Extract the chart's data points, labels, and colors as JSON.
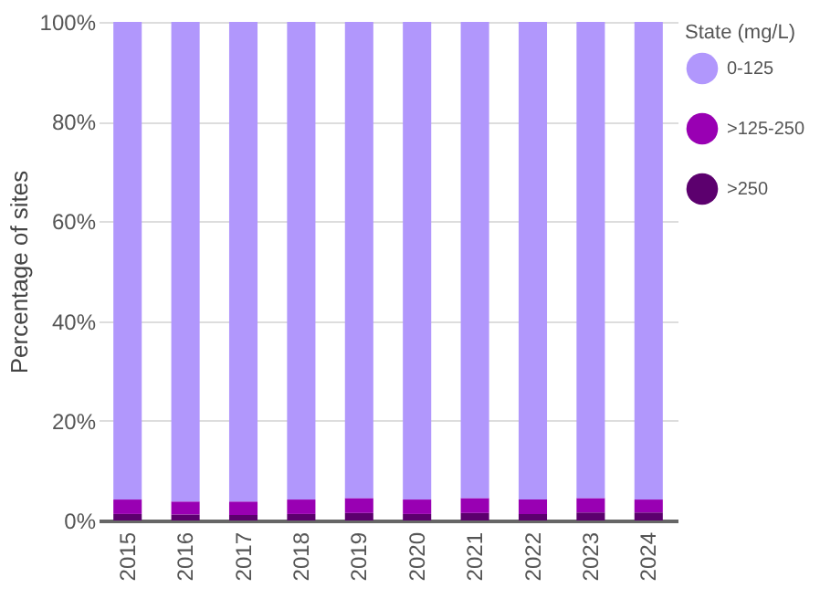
{
  "chart_data": {
    "type": "bar",
    "stacked": true,
    "ylabel": "Percentage of sites",
    "legend_title": "State (mg/L)",
    "legend": "right",
    "categories": [
      "2015",
      "2016",
      "2017",
      "2018",
      "2019",
      "2020",
      "2021",
      "2022",
      "2023",
      "2024"
    ],
    "series": [
      {
        "name": ">250",
        "color": "#5c006e",
        "values": [
          1.3,
          1.2,
          1.1,
          1.3,
          1.5,
          1.3,
          1.5,
          1.3,
          1.6,
          1.6
        ]
      },
      {
        "name": ">125-250",
        "color": "#9900b3",
        "values": [
          2.9,
          2.6,
          2.7,
          2.9,
          3.0,
          2.9,
          3.0,
          2.9,
          2.9,
          2.6
        ]
      },
      {
        "name": "0-125",
        "color": "#b197fc",
        "values": [
          95.8,
          96.2,
          96.2,
          95.8,
          95.5,
          95.8,
          95.5,
          95.8,
          95.5,
          95.8
        ]
      }
    ],
    "ylim": [
      0,
      100
    ],
    "yticks": [
      {
        "value": 0,
        "label": "0%"
      },
      {
        "value": 20,
        "label": "20%"
      },
      {
        "value": 40,
        "label": "40%"
      },
      {
        "value": 60,
        "label": "60%"
      },
      {
        "value": 80,
        "label": "80%"
      },
      {
        "value": 100,
        "label": "100%"
      }
    ],
    "grid": "y"
  }
}
